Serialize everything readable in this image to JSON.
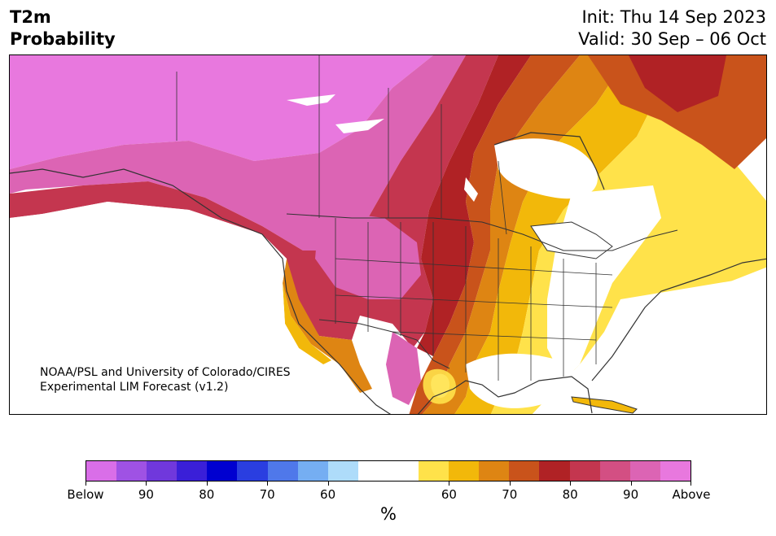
{
  "header": {
    "title_line1": "T2m",
    "title_line2": "Probability",
    "init": "Init: Thu 14 Sep 2023",
    "valid": "Valid: 30 Sep – 06 Oct"
  },
  "credit": {
    "line1": "NOAA/PSL and University of Colorado/CIRES",
    "line2": "Experimental LIM Forecast (v1.2)"
  },
  "colorbar": {
    "colors": [
      "#d96ee8",
      "#9f52e4",
      "#7038dc",
      "#3a1fd8",
      "#0000d0",
      "#2a3ee0",
      "#4f78ea",
      "#75aef2",
      "#aedcfa",
      "#ffffff",
      "#ffffff",
      "#ffe24a",
      "#f2b80a",
      "#de8513",
      "#c9531b",
      "#b02225",
      "#c4364f",
      "#d34f83",
      "#dc64b4",
      "#e878de"
    ],
    "tick_labels": [
      "Below",
      "90",
      "80",
      "70",
      "60",
      "60",
      "70",
      "80",
      "90",
      "Above"
    ],
    "unit": "%"
  },
  "map": {
    "region": "North America",
    "category": "Above/Below normal 2m temperature probability"
  }
}
